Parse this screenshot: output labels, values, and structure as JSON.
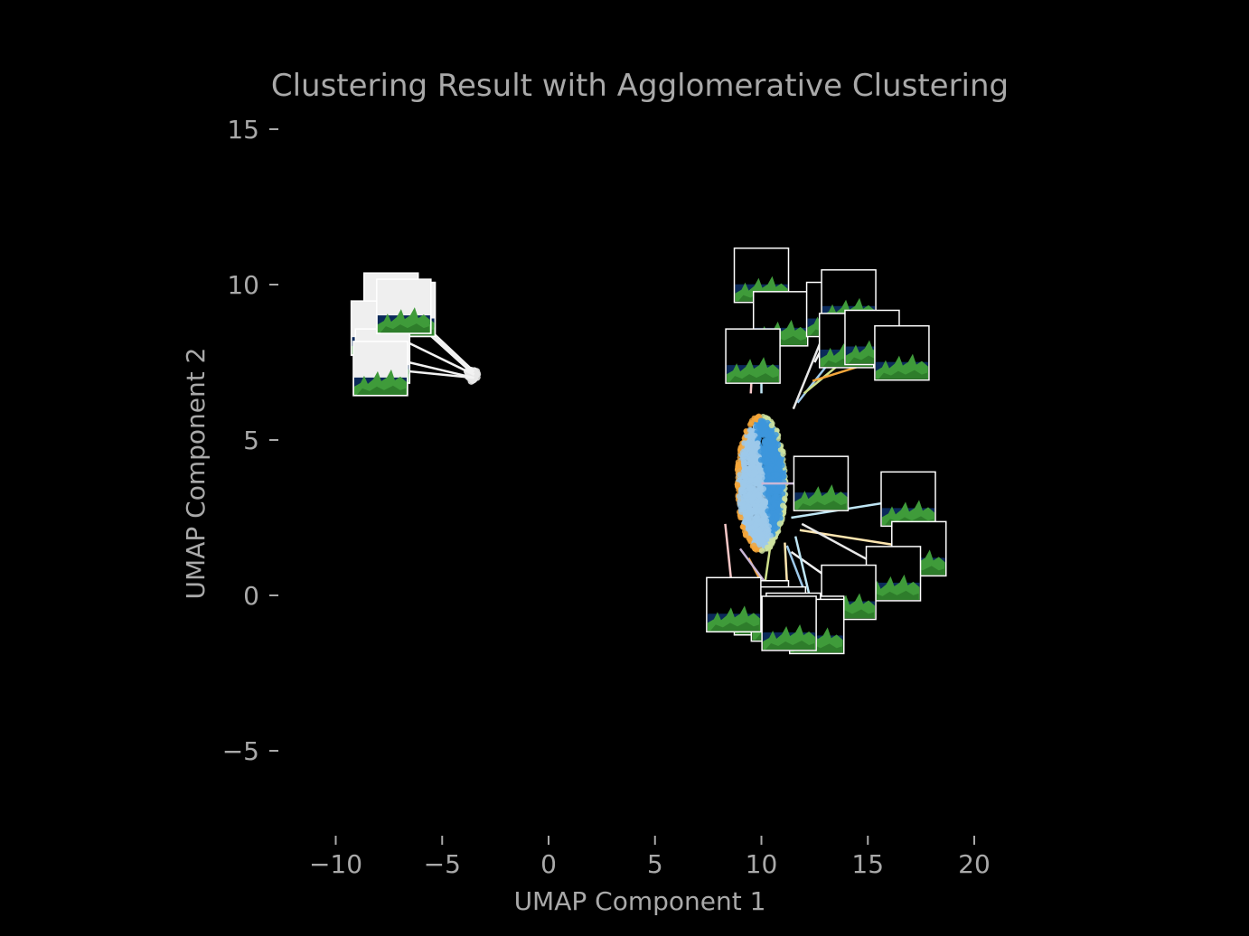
{
  "chart_data": {
    "type": "scatter",
    "title": "Clustering Result with Agglomerative Clustering",
    "xlabel": "UMAP Component 1",
    "ylabel": "UMAP Component 2",
    "xlim": [
      -11,
      20
    ],
    "ylim": [
      -7.5,
      15.5
    ],
    "xticks": [
      -10,
      -5,
      0,
      5,
      10,
      15,
      20
    ],
    "yticks": [
      -5,
      0,
      5,
      10,
      15
    ],
    "xtick_labels": [
      "−10",
      "−5",
      "0",
      "5",
      "10",
      "15",
      "20"
    ],
    "ytick_labels": [
      "−5",
      "0",
      "5",
      "10",
      "15"
    ],
    "grid": false,
    "legend": false,
    "background": "#000000",
    "clusters": [
      {
        "center": [
          -3.6,
          7.1
        ],
        "spread": [
          0.15,
          0.12
        ],
        "color": "#e8e8e8",
        "thumb_style": "white"
      },
      {
        "center": [
          10.0,
          3.6
        ],
        "spread": [
          2.3,
          4.4
        ],
        "colors": [
          "#9ec9ea",
          "#3d97dc",
          "#f3a63b",
          "#cfe3a0"
        ],
        "thumb_style": "dark"
      }
    ],
    "thumbnails": [
      {
        "anchor": [
          -3.5,
          7.2
        ],
        "pos": [
          -6.6,
          9.2
        ]
      },
      {
        "anchor": [
          -3.5,
          7.1
        ],
        "pos": [
          -7.4,
          9.5
        ]
      },
      {
        "anchor": [
          -3.5,
          7.1
        ],
        "pos": [
          -8.0,
          8.6
        ]
      },
      {
        "anchor": [
          -3.5,
          7.0
        ],
        "pos": [
          -7.8,
          7.7
        ]
      },
      {
        "anchor": [
          -3.5,
          7.0
        ],
        "pos": [
          -7.9,
          7.3
        ]
      },
      {
        "anchor": [
          -3.5,
          7.1
        ],
        "pos": [
          -6.8,
          9.3
        ]
      },
      {
        "anchor": [
          10.0,
          6.5
        ],
        "pos": [
          10.0,
          10.3
        ]
      },
      {
        "anchor": [
          10.7,
          8.0
        ],
        "pos": [
          10.9,
          8.9
        ]
      },
      {
        "anchor": [
          11.5,
          6.0
        ],
        "pos": [
          13.4,
          9.2
        ]
      },
      {
        "anchor": [
          12.5,
          7.5
        ],
        "pos": [
          14.1,
          9.6
        ]
      },
      {
        "anchor": [
          11.7,
          6.2
        ],
        "pos": [
          14.0,
          8.2
        ]
      },
      {
        "anchor": [
          12.0,
          6.5
        ],
        "pos": [
          15.2,
          8.3
        ]
      },
      {
        "anchor": [
          12.4,
          6.9
        ],
        "pos": [
          16.6,
          7.8
        ]
      },
      {
        "anchor": [
          9.5,
          6.5
        ],
        "pos": [
          9.6,
          7.7
        ]
      },
      {
        "anchor": [
          10.0,
          3.6
        ],
        "pos": [
          12.8,
          3.6
        ]
      },
      {
        "anchor": [
          11.4,
          2.5
        ],
        "pos": [
          16.9,
          3.1
        ]
      },
      {
        "anchor": [
          11.8,
          2.1
        ],
        "pos": [
          17.4,
          1.5
        ]
      },
      {
        "anchor": [
          11.9,
          2.3
        ],
        "pos": [
          16.2,
          0.7
        ]
      },
      {
        "anchor": [
          11.4,
          1.4
        ],
        "pos": [
          14.1,
          0.1
        ]
      },
      {
        "anchor": [
          11.2,
          1.6
        ],
        "pos": [
          12.6,
          -0.9
        ]
      },
      {
        "anchor": [
          10.4,
          1.5
        ],
        "pos": [
          10.0,
          -0.4
        ]
      },
      {
        "anchor": [
          9.4,
          1.2
        ],
        "pos": [
          10.8,
          -0.6
        ]
      },
      {
        "anchor": [
          8.3,
          2.3
        ],
        "pos": [
          8.7,
          -0.3
        ]
      },
      {
        "anchor": [
          9.0,
          1.5
        ],
        "pos": [
          11.5,
          -0.8
        ]
      },
      {
        "anchor": [
          11.6,
          1.9
        ],
        "pos": [
          12.6,
          -1.0
        ]
      },
      {
        "anchor": [
          11.1,
          1.7
        ],
        "pos": [
          11.3,
          -0.9
        ]
      }
    ]
  }
}
